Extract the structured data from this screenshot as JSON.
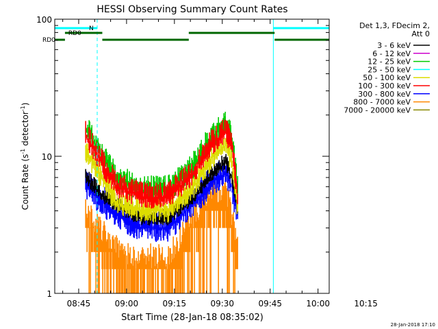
{
  "chart_data": {
    "type": "line",
    "title": "HESSI Observing Summary Count Rates",
    "xlabel": "Start Time (28-Jan-18 08:35:02)",
    "ylabel_main": "Count Rate (s",
    "ylabel_sup1": "-1",
    "ylabel_mid": " detector",
    "ylabel_sup2": "-1",
    "ylabel_end": ")",
    "y_scale": "log",
    "ylim": [
      1,
      100
    ],
    "xlim_minutes": [
      -7.5,
      78.5
    ],
    "x_start": "08:35:02",
    "x_ticks": [
      {
        "label": "08:45",
        "t": 0
      },
      {
        "label": "09:00",
        "t": 15
      },
      {
        "label": "09:15",
        "t": 30
      },
      {
        "label": "09:30",
        "t": 45
      },
      {
        "label": "09:45",
        "t": 60
      },
      {
        "label": "10:00",
        "t": 75
      },
      {
        "label": "10:15",
        "t": 90
      }
    ],
    "y_ticks": [
      {
        "label": "1",
        "v": 1
      },
      {
        "label": "10",
        "v": 10
      },
      {
        "label": "100",
        "v": 100
      }
    ],
    "legend_header": [
      "Det 1,3, FDecim 2,",
      "Att 0"
    ],
    "series": [
      {
        "name": "3 - 6 keV",
        "color": "#000000"
      },
      {
        "name": "6 - 12 keV",
        "color": "#cc00cc"
      },
      {
        "name": "12 - 25 keV",
        "color": "#00cc00"
      },
      {
        "name": "25 - 50 keV",
        "color": "#00ffff"
      },
      {
        "name": "50 - 100 keV",
        "color": "#dddd00"
      },
      {
        "name": "100 - 300 keV",
        "color": "#ff0000"
      },
      {
        "name": "300 - 800 keV",
        "color": "#0000ff"
      },
      {
        "name": "800 - 7000 keV",
        "color": "#ff8800"
      },
      {
        "name": "7000 - 20000 keV",
        "color": "#888800"
      }
    ],
    "data_start_minute": 2.2,
    "data_end_minute": 49.8,
    "profiles": {
      "red": [
        [
          2.2,
          14
        ],
        [
          7,
          9
        ],
        [
          12,
          6
        ],
        [
          20,
          5
        ],
        [
          28,
          5
        ],
        [
          36,
          7.5
        ],
        [
          42,
          12.5
        ],
        [
          46,
          15
        ],
        [
          48,
          12
        ],
        [
          49.8,
          5
        ]
      ],
      "yellow": [
        [
          2.2,
          11
        ],
        [
          7,
          7
        ],
        [
          12,
          4.5
        ],
        [
          20,
          4
        ],
        [
          28,
          4
        ],
        [
          36,
          6
        ],
        [
          42,
          10
        ],
        [
          46,
          12
        ],
        [
          48,
          9
        ],
        [
          49.8,
          4
        ]
      ],
      "black": [
        [
          2.2,
          7
        ],
        [
          8,
          5
        ],
        [
          14,
          4
        ],
        [
          20,
          3.5
        ],
        [
          28,
          3.5
        ],
        [
          36,
          5
        ],
        [
          42,
          7.5
        ],
        [
          46,
          9
        ],
        [
          48,
          7
        ],
        [
          49.8,
          4
        ]
      ],
      "blue": [
        [
          2.2,
          6
        ],
        [
          8,
          4.5
        ],
        [
          14,
          3.5
        ],
        [
          20,
          3
        ],
        [
          28,
          3
        ],
        [
          36,
          4.5
        ],
        [
          42,
          6.5
        ],
        [
          46,
          7.5
        ],
        [
          48,
          6
        ],
        [
          49.8,
          3.5
        ]
      ],
      "orange": [
        [
          2.2,
          3.2
        ],
        [
          8,
          2.2
        ],
        [
          14,
          1.5
        ],
        [
          20,
          1.5
        ],
        [
          28,
          1.5
        ],
        [
          36,
          3
        ],
        [
          42,
          4.5
        ],
        [
          46,
          4.5
        ],
        [
          48,
          3
        ],
        [
          49.8,
          1.8
        ]
      ]
    },
    "night_markers": [
      {
        "label": "N",
        "start": -7.5,
        "end": 5.8
      },
      {
        "label": "",
        "start": 61.0,
        "end": 78.5
      }
    ],
    "night_dashed_at": [
      5.8,
      78.5
    ],
    "night_solid_at": [
      61.0
    ],
    "saa_markers": [
      {
        "label": "RD0",
        "level": 2,
        "start": -7.5,
        "end": -4.3
      },
      {
        "label": "RD0",
        "level": 3,
        "start": -4.3,
        "end": 7.4
      },
      {
        "label": "",
        "level": 2,
        "start": 7.4,
        "end": 34.5
      },
      {
        "label": "",
        "level": 3,
        "start": 34.5,
        "end": 61.4
      },
      {
        "label": "",
        "level": 2,
        "start": 61.4,
        "end": 78.5
      }
    ],
    "footer_date": "28-Jan-2018 17:10",
    "grid": false,
    "legend_placement": "right"
  }
}
